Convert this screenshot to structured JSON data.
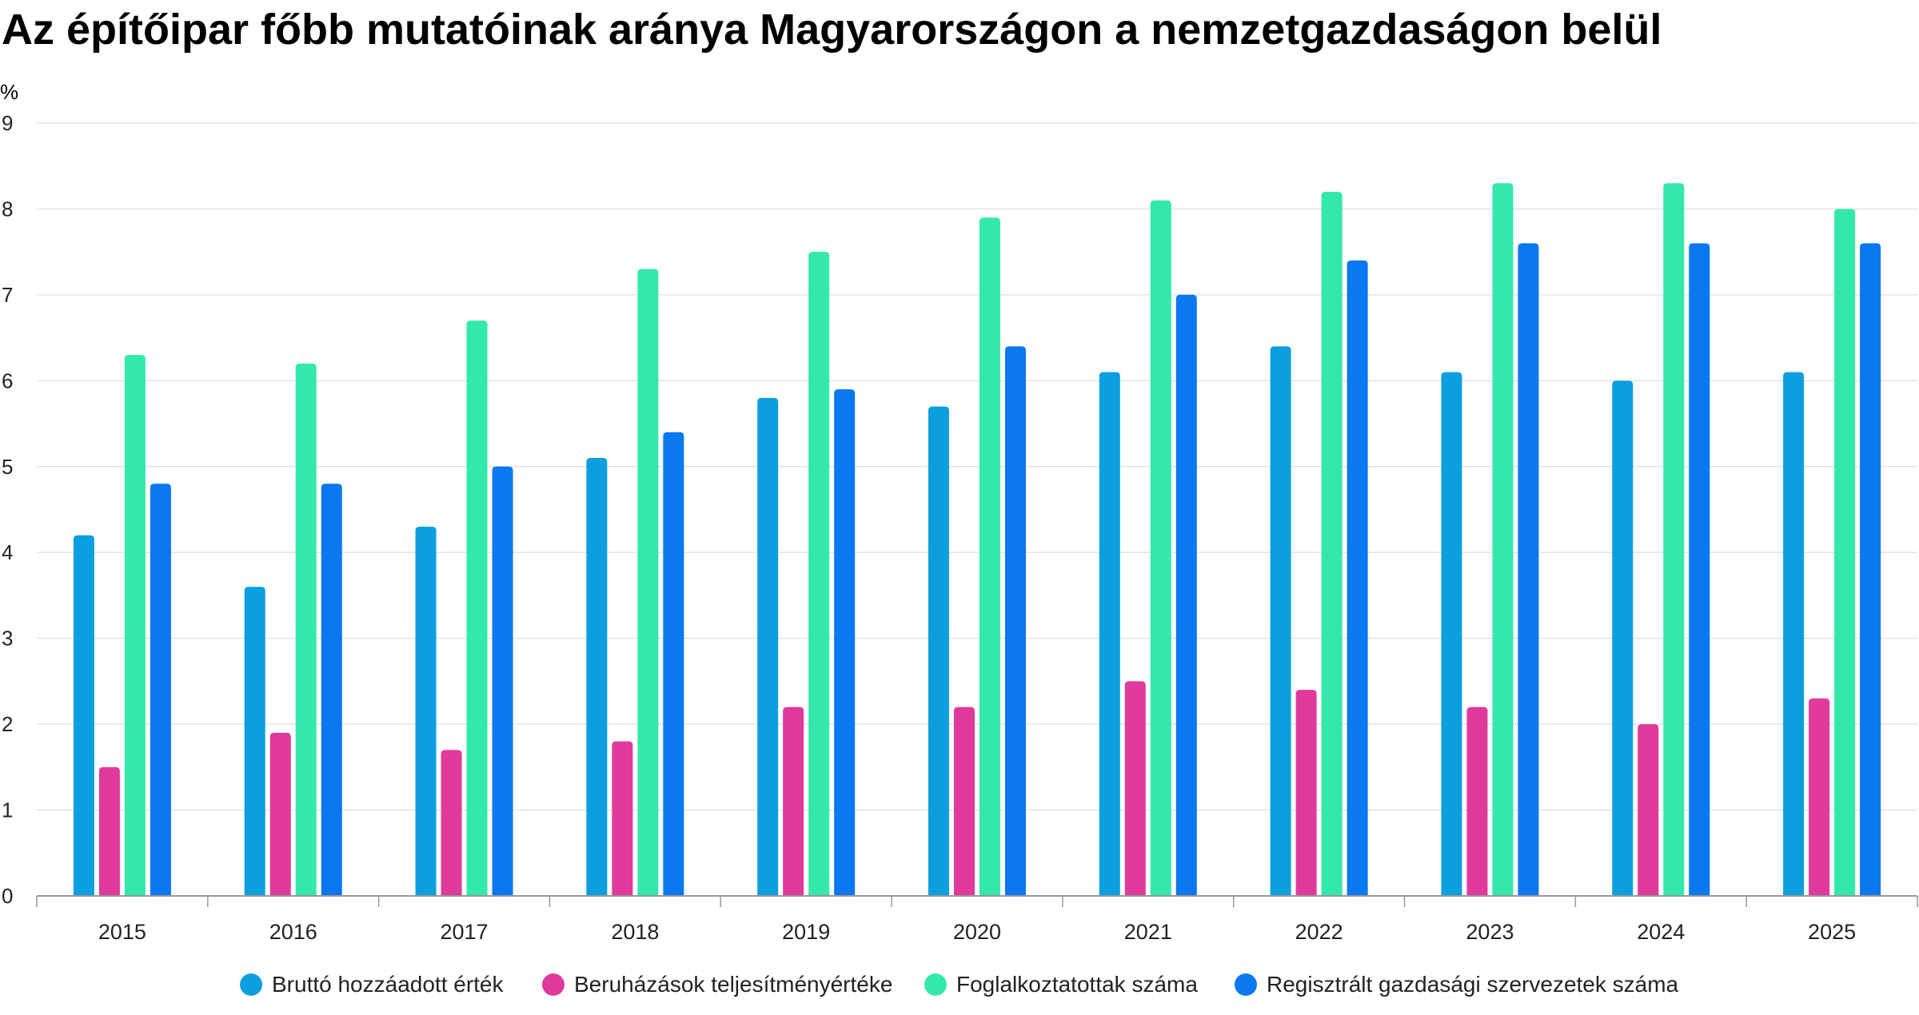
{
  "chart_data": {
    "type": "bar",
    "title": "Az építőipar főbb mutatóinak aránya Magyarországon a nemzetgazdaságon belül",
    "ylabel": "%",
    "xlabel": "",
    "ylim": [
      0,
      9
    ],
    "yticks": [
      "0",
      "1",
      "2",
      "3",
      "4",
      "5",
      "6",
      "7",
      "8",
      "9"
    ],
    "grid": true,
    "legend_position": "bottom",
    "categories": [
      "2015",
      "2016",
      "2017",
      "2018",
      "2019",
      "2020",
      "2021",
      "2022",
      "2023",
      "2024",
      "2025"
    ],
    "series": [
      {
        "name": "Bruttó hozzáadott érték",
        "color": "#0b9fe0",
        "values": [
          4.2,
          3.6,
          4.3,
          5.1,
          5.8,
          5.7,
          6.1,
          6.4,
          6.1,
          6.0,
          6.1
        ]
      },
      {
        "name": "Beruházások teljesítményértéke",
        "color": "#df3a9c",
        "values": [
          1.5,
          1.9,
          1.7,
          1.8,
          2.2,
          2.2,
          2.5,
          2.4,
          2.2,
          2.0,
          2.3
        ]
      },
      {
        "name": "Foglalkoztatottak száma",
        "color": "#33e8ad",
        "values": [
          6.3,
          6.2,
          6.7,
          7.3,
          7.5,
          7.9,
          8.1,
          8.2,
          8.3,
          8.3,
          8.0
        ]
      },
      {
        "name": "Regisztrált gazdasági szervezetek száma",
        "color": "#0a78f0",
        "values": [
          4.8,
          4.8,
          5.0,
          5.4,
          5.9,
          6.4,
          7.0,
          7.4,
          7.6,
          7.6,
          7.6
        ]
      }
    ]
  }
}
